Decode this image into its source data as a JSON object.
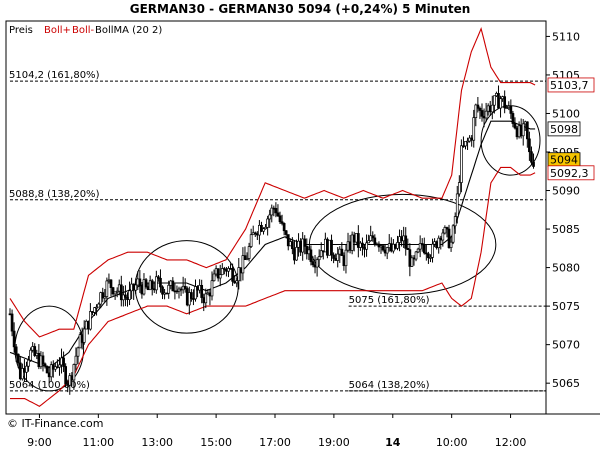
{
  "header": {
    "title": "GERMAN30 - GERMAN30     5094 (+0,24%)     5 Minuten"
  },
  "legend": {
    "price": "Preis",
    "boll_plus": "Boll+",
    "boll_minus": "Boll-",
    "bollma": "BollMA (20 2)"
  },
  "footer": {
    "source": "© IT-Finance.com"
  },
  "colors": {
    "candle": "#000000",
    "band": "#cc0000",
    "ma": "#000000",
    "badge_fill": "#f5c400",
    "grid": "#000000"
  },
  "chart_data": {
    "type": "candlestick",
    "y_range": [
      5061,
      5112
    ],
    "y_ticks": [
      "5110",
      "5105",
      "5100",
      "5095",
      "5090",
      "5085",
      "5080",
      "5075",
      "5070",
      "5065"
    ],
    "x_range": [
      0,
      108
    ],
    "x_ticks": [
      {
        "label": "9:00",
        "x": 6
      },
      {
        "label": "11:00",
        "x": 18
      },
      {
        "label": "13:00",
        "x": 30
      },
      {
        "label": "15:00",
        "x": 42
      },
      {
        "label": "17:00",
        "x": 54
      },
      {
        "label": "19:00",
        "x": 66
      },
      {
        "label": "14",
        "x": 78
      },
      {
        "label": "10:00",
        "x": 90
      },
      {
        "label": "12:00",
        "x": 102
      }
    ],
    "price_labels": [
      {
        "label": "5103,7",
        "value": 5103.7,
        "style": "red"
      },
      {
        "label": "5098",
        "value": 5098,
        "style": "black"
      },
      {
        "label": "5094",
        "value": 5094,
        "style": "badge"
      },
      {
        "label": "5092,3",
        "value": 5092.3,
        "style": "red"
      }
    ],
    "fib_levels": [
      {
        "label": "5104,2 (161,80%)",
        "value": 5104.2,
        "label_x": 0.5,
        "x_from": 0
      },
      {
        "label": "5088,8 (138,20%)",
        "value": 5088.8,
        "label_x": 0.5,
        "x_from": 0
      },
      {
        "label": "5075 (161,80%)",
        "value": 5075,
        "label_x": 69,
        "x_from": 69
      },
      {
        "label": "5064 (100,00%)",
        "value": 5064,
        "label_x": 0.5,
        "x_from": 0
      },
      {
        "label": "5064 (138,20%)",
        "value": 5064,
        "label_x": 69,
        "x_from": 69
      }
    ],
    "ellipses": [
      {
        "cx": 8,
        "cy": 5069.5,
        "rx": 7,
        "ry": 5.5
      },
      {
        "cx": 36,
        "cy": 5077.5,
        "rx": 10.5,
        "ry": 6
      },
      {
        "cx": 80,
        "cy": 5083,
        "rx": 19,
        "ry": 6.5
      },
      {
        "cx": 102,
        "cy": 5096.5,
        "rx": 6,
        "ry": 4.5
      }
    ],
    "close_anchors": [
      [
        0,
        5074
      ],
      [
        2,
        5066
      ],
      [
        4,
        5069
      ],
      [
        6,
        5068
      ],
      [
        8,
        5066
      ],
      [
        10,
        5068
      ],
      [
        12,
        5065
      ],
      [
        14,
        5070
      ],
      [
        16,
        5073
      ],
      [
        18,
        5076
      ],
      [
        20,
        5078
      ],
      [
        22,
        5077
      ],
      [
        24,
        5076
      ],
      [
        26,
        5078
      ],
      [
        28,
        5077
      ],
      [
        30,
        5078
      ],
      [
        32,
        5077
      ],
      [
        34,
        5078
      ],
      [
        36,
        5076
      ],
      [
        38,
        5077
      ],
      [
        40,
        5076
      ],
      [
        42,
        5079
      ],
      [
        44,
        5080
      ],
      [
        46,
        5079
      ],
      [
        48,
        5081
      ],
      [
        50,
        5085
      ],
      [
        52,
        5086
      ],
      [
        54,
        5088
      ],
      [
        56,
        5084
      ],
      [
        58,
        5082
      ],
      [
        60,
        5083
      ],
      [
        62,
        5081
      ],
      [
        64,
        5083
      ],
      [
        66,
        5082
      ],
      [
        68,
        5081
      ],
      [
        70,
        5084
      ],
      [
        72,
        5082
      ],
      [
        74,
        5084
      ],
      [
        76,
        5083
      ],
      [
        78,
        5082
      ],
      [
        80,
        5084
      ],
      [
        82,
        5080
      ],
      [
        84,
        5083
      ],
      [
        86,
        5082
      ],
      [
        88,
        5085
      ],
      [
        90,
        5083
      ],
      [
        91,
        5088
      ],
      [
        92,
        5095
      ],
      [
        94,
        5097
      ],
      [
        95,
        5101
      ],
      [
        96,
        5100
      ],
      [
        98,
        5101
      ],
      [
        100,
        5102
      ],
      [
        102,
        5100
      ],
      [
        104,
        5097
      ],
      [
        105,
        5098
      ],
      [
        106,
        5094
      ],
      [
        107,
        5094
      ]
    ],
    "upper_band_anchors": [
      [
        0,
        5076
      ],
      [
        3,
        5073
      ],
      [
        6,
        5071
      ],
      [
        10,
        5072
      ],
      [
        13,
        5072
      ],
      [
        16,
        5079
      ],
      [
        20,
        5081
      ],
      [
        24,
        5082
      ],
      [
        28,
        5082
      ],
      [
        32,
        5081
      ],
      [
        36,
        5081
      ],
      [
        40,
        5080
      ],
      [
        44,
        5081
      ],
      [
        48,
        5085
      ],
      [
        52,
        5091
      ],
      [
        56,
        5090
      ],
      [
        60,
        5089
      ],
      [
        64,
        5090
      ],
      [
        68,
        5089
      ],
      [
        72,
        5090
      ],
      [
        76,
        5089
      ],
      [
        80,
        5090
      ],
      [
        84,
        5089
      ],
      [
        88,
        5089
      ],
      [
        90,
        5092
      ],
      [
        92,
        5103
      ],
      [
        94,
        5108
      ],
      [
        96,
        5111
      ],
      [
        98,
        5106
      ],
      [
        100,
        5104
      ],
      [
        102,
        5104
      ],
      [
        104,
        5104
      ],
      [
        106,
        5104
      ],
      [
        107,
        5103.7
      ]
    ],
    "lower_band_anchors": [
      [
        0,
        5063
      ],
      [
        3,
        5063
      ],
      [
        6,
        5062
      ],
      [
        10,
        5064
      ],
      [
        13,
        5066
      ],
      [
        16,
        5070
      ],
      [
        20,
        5073
      ],
      [
        24,
        5074
      ],
      [
        28,
        5075
      ],
      [
        32,
        5075
      ],
      [
        36,
        5074
      ],
      [
        40,
        5075
      ],
      [
        44,
        5075
      ],
      [
        48,
        5075
      ],
      [
        52,
        5076
      ],
      [
        56,
        5077
      ],
      [
        60,
        5077
      ],
      [
        64,
        5077
      ],
      [
        68,
        5077
      ],
      [
        72,
        5077
      ],
      [
        76,
        5077
      ],
      [
        80,
        5077
      ],
      [
        84,
        5077
      ],
      [
        88,
        5078
      ],
      [
        90,
        5076
      ],
      [
        92,
        5075
      ],
      [
        94,
        5076
      ],
      [
        96,
        5082
      ],
      [
        98,
        5091
      ],
      [
        100,
        5093
      ],
      [
        102,
        5093
      ],
      [
        104,
        5092
      ],
      [
        106,
        5092
      ],
      [
        107,
        5092.3
      ]
    ],
    "ma_anchors": [
      [
        0,
        5069
      ],
      [
        4,
        5068
      ],
      [
        8,
        5067
      ],
      [
        12,
        5069
      ],
      [
        16,
        5073
      ],
      [
        20,
        5076
      ],
      [
        24,
        5077
      ],
      [
        28,
        5078
      ],
      [
        32,
        5078
      ],
      [
        36,
        5078
      ],
      [
        40,
        5077
      ],
      [
        44,
        5078
      ],
      [
        48,
        5080
      ],
      [
        52,
        5083
      ],
      [
        56,
        5084
      ],
      [
        60,
        5083
      ],
      [
        64,
        5083
      ],
      [
        68,
        5083
      ],
      [
        72,
        5083
      ],
      [
        76,
        5083
      ],
      [
        80,
        5083
      ],
      [
        84,
        5083
      ],
      [
        88,
        5083
      ],
      [
        90,
        5084
      ],
      [
        92,
        5088
      ],
      [
        94,
        5092
      ],
      [
        96,
        5096
      ],
      [
        98,
        5099
      ],
      [
        100,
        5099
      ],
      [
        102,
        5099
      ],
      [
        104,
        5098.5
      ],
      [
        106,
        5098
      ],
      [
        107,
        5098
      ]
    ]
  }
}
